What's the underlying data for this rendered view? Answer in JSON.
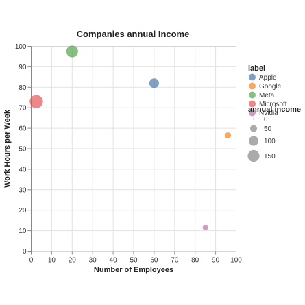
{
  "chart_data": {
    "type": "scatter",
    "title": "Companies annual Income",
    "xlabel": "Number of Employees",
    "ylabel": "Work Hours per Week",
    "xlim": [
      0,
      100
    ],
    "ylim": [
      0,
      100
    ],
    "x_ticks": [
      "0",
      "10",
      "20",
      "30",
      "40",
      "50",
      "60",
      "70",
      "80",
      "90",
      "100"
    ],
    "y_ticks": [
      "0",
      "10",
      "20",
      "30",
      "40",
      "50",
      "60",
      "70",
      "80",
      "90",
      "100"
    ],
    "grid": true,
    "legend_position": "right",
    "points": [
      {
        "label": "Apple",
        "x": 60,
        "y": 82,
        "annual_income": 100
      },
      {
        "label": "Google",
        "x": 96,
        "y": 56.5,
        "annual_income": 40
      },
      {
        "label": "Meta",
        "x": 20,
        "y": 97.5,
        "annual_income": 150
      },
      {
        "label": "Microsoft",
        "x": 2.5,
        "y": 73,
        "annual_income": 190
      },
      {
        "label": "Nvidia",
        "x": 85,
        "y": 11.5,
        "annual_income": 30
      }
    ],
    "color_legend": {
      "title": "label",
      "entries": [
        {
          "name": "Apple",
          "color": "#4c78a8"
        },
        {
          "name": "Google",
          "color": "#f58518"
        },
        {
          "name": "Meta",
          "color": "#54a24b"
        },
        {
          "name": "Microsoft",
          "color": "#e45756"
        },
        {
          "name": "Nvidia",
          "color": "#b279a2"
        }
      ]
    },
    "size_legend": {
      "title": "annual income",
      "entries": [
        {
          "label": "0",
          "value": 0
        },
        {
          "label": "50",
          "value": 50
        },
        {
          "label": "100",
          "value": 100
        },
        {
          "label": "150",
          "value": 150
        }
      ]
    }
  }
}
